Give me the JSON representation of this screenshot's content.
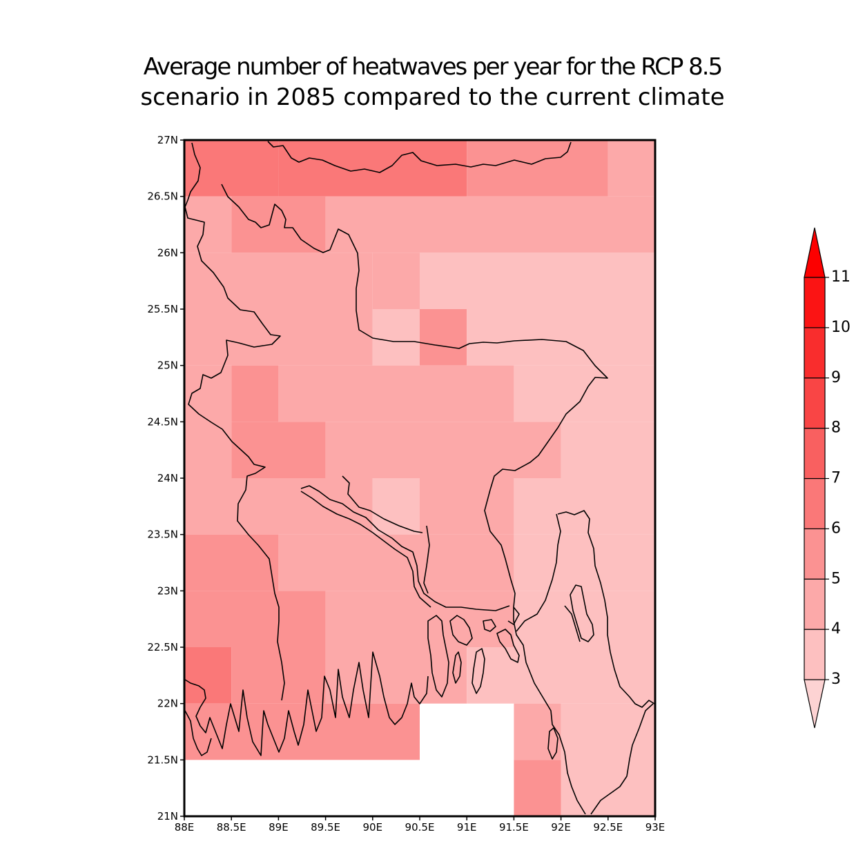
{
  "title": {
    "line1": "Average number of heatwaves per year for the RCP 8.5",
    "line2": "scenario in 2085 compared to the current climate"
  },
  "map": {
    "lon_range": [
      88,
      93
    ],
    "lat_range": [
      21,
      27
    ],
    "x_ticks": [
      "88E",
      "88.5E",
      "89E",
      "89.5E",
      "90E",
      "90.5E",
      "91E",
      "91.5E",
      "92E",
      "92.5E",
      "93E"
    ],
    "y_ticks": [
      "21N",
      "21.5N",
      "22N",
      "22.5N",
      "23N",
      "23.5N",
      "24N",
      "24.5N",
      "25N",
      "25.5N",
      "26N",
      "26.5N",
      "27N"
    ],
    "grid_cell_lon": 0.5,
    "grid_cell_lat": 0.5,
    "grid": [
      {
        "lon": 88.0,
        "lat": 26.5,
        "w": 1.0,
        "h": 0.5,
        "value": 6.5
      },
      {
        "lon": 89.0,
        "lat": 26.5,
        "w": 2.0,
        "h": 0.5,
        "value": 6.5
      },
      {
        "lon": 91.0,
        "lat": 26.5,
        "w": 1.5,
        "h": 0.5,
        "value": 5.5
      },
      {
        "lon": 92.5,
        "lat": 26.5,
        "w": 0.5,
        "h": 0.5,
        "value": 4.5
      },
      {
        "lon": 88.0,
        "lat": 26.0,
        "w": 0.5,
        "h": 0.5,
        "value": 4.5
      },
      {
        "lon": 88.5,
        "lat": 26.0,
        "w": 1.0,
        "h": 0.5,
        "value": 5.5
      },
      {
        "lon": 89.5,
        "lat": 26.0,
        "w": 3.5,
        "h": 0.5,
        "value": 4.5
      },
      {
        "lon": 88.0,
        "lat": 25.0,
        "w": 2.0,
        "h": 1.0,
        "value": 4.5
      },
      {
        "lon": 90.0,
        "lat": 25.5,
        "w": 0.5,
        "h": 0.5,
        "value": 4.5
      },
      {
        "lon": 90.5,
        "lat": 25.5,
        "w": 2.5,
        "h": 0.5,
        "value": 3.5
      },
      {
        "lon": 90.0,
        "lat": 25.0,
        "w": 0.5,
        "h": 0.5,
        "value": 3.0
      },
      {
        "lon": 90.5,
        "lat": 25.0,
        "w": 0.5,
        "h": 0.5,
        "value": 5.0
      },
      {
        "lon": 91.0,
        "lat": 25.0,
        "w": 2.0,
        "h": 0.5,
        "value": 3.5
      },
      {
        "lon": 88.0,
        "lat": 24.0,
        "w": 0.5,
        "h": 1.0,
        "value": 4.5
      },
      {
        "lon": 88.5,
        "lat": 24.5,
        "w": 0.5,
        "h": 0.5,
        "value": 5.5
      },
      {
        "lon": 89.0,
        "lat": 24.5,
        "w": 2.5,
        "h": 0.5,
        "value": 4.5
      },
      {
        "lon": 91.5,
        "lat": 24.5,
        "w": 1.5,
        "h": 0.5,
        "value": 3.5
      },
      {
        "lon": 88.5,
        "lat": 24.0,
        "w": 1.0,
        "h": 0.5,
        "value": 5.5
      },
      {
        "lon": 89.5,
        "lat": 24.0,
        "w": 2.5,
        "h": 0.5,
        "value": 4.5
      },
      {
        "lon": 92.0,
        "lat": 24.0,
        "w": 1.0,
        "h": 0.5,
        "value": 3.5
      },
      {
        "lon": 88.0,
        "lat": 23.5,
        "w": 2.0,
        "h": 0.5,
        "value": 4.5
      },
      {
        "lon": 90.0,
        "lat": 23.5,
        "w": 0.5,
        "h": 0.5,
        "value": 3.0
      },
      {
        "lon": 90.5,
        "lat": 23.5,
        "w": 1.0,
        "h": 0.5,
        "value": 4.5
      },
      {
        "lon": 91.5,
        "lat": 23.5,
        "w": 1.5,
        "h": 0.5,
        "value": 3.5
      },
      {
        "lon": 88.0,
        "lat": 23.0,
        "w": 1.0,
        "h": 0.5,
        "value": 5.5
      },
      {
        "lon": 89.0,
        "lat": 23.0,
        "w": 2.5,
        "h": 0.5,
        "value": 4.5
      },
      {
        "lon": 91.5,
        "lat": 23.0,
        "w": 1.5,
        "h": 0.5,
        "value": 3.5
      },
      {
        "lon": 88.0,
        "lat": 22.5,
        "w": 1.5,
        "h": 0.5,
        "value": 5.5
      },
      {
        "lon": 89.5,
        "lat": 22.5,
        "w": 2.0,
        "h": 0.5,
        "value": 4.5
      },
      {
        "lon": 91.5,
        "lat": 22.5,
        "w": 1.5,
        "h": 0.5,
        "value": 3.5
      },
      {
        "lon": 88.0,
        "lat": 22.0,
        "w": 0.5,
        "h": 0.5,
        "value": 6.5
      },
      {
        "lon": 88.5,
        "lat": 22.0,
        "w": 1.0,
        "h": 0.5,
        "value": 5.5
      },
      {
        "lon": 89.5,
        "lat": 22.0,
        "w": 1.5,
        "h": 0.5,
        "value": 4.5
      },
      {
        "lon": 91.0,
        "lat": 22.0,
        "w": 2.0,
        "h": 0.5,
        "value": 3.5
      },
      {
        "lon": 88.0,
        "lat": 21.5,
        "w": 2.5,
        "h": 0.5,
        "value": 5.5
      },
      {
        "lon": 91.5,
        "lat": 21.5,
        "w": 0.5,
        "h": 0.5,
        "value": 4.5
      },
      {
        "lon": 92.0,
        "lat": 21.0,
        "w": 1.0,
        "h": 1.0,
        "value": 3.5
      },
      {
        "lon": 91.5,
        "lat": 21.0,
        "w": 0.5,
        "h": 0.5,
        "value": 5.5
      }
    ]
  },
  "colorbar": {
    "levels": [
      "3",
      "4",
      "5",
      "6",
      "7",
      "8",
      "9",
      "10",
      "11"
    ],
    "colors": [
      "#fdd3d3",
      "#fdc0c0",
      "#fca9a9",
      "#fb9292",
      "#fa7878",
      "#f96060",
      "#f94545",
      "#f92d2d",
      "#fb1414",
      "#fc0000"
    ],
    "min_extension": "triangle",
    "max_extension": "triangle"
  }
}
